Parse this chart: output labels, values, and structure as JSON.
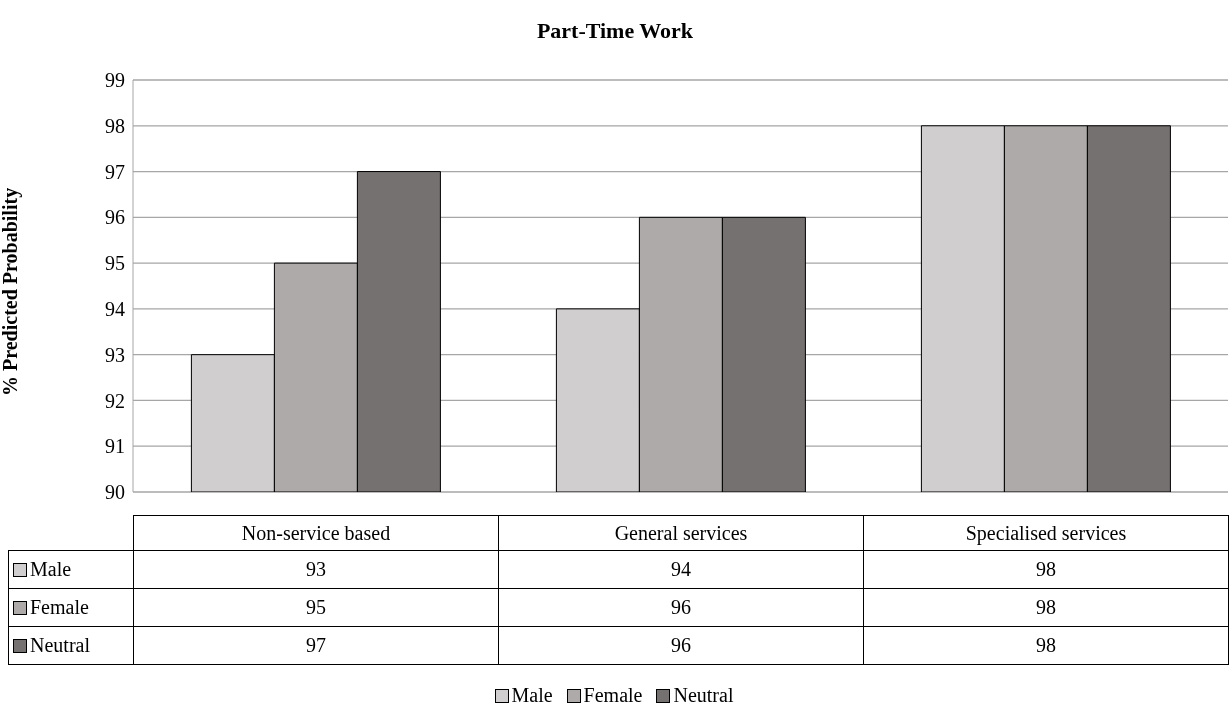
{
  "chart_data": {
    "type": "bar",
    "title": "Part-Time Work",
    "ylabel": "% Predicted Probability",
    "categories": [
      "Non-service based",
      "General services",
      "Specialised services"
    ],
    "series": [
      {
        "name": "Male",
        "color": "#d0cece",
        "values": [
          93,
          94,
          98
        ]
      },
      {
        "name": "Female",
        "color": "#aeaaaa",
        "values": [
          95,
          96,
          98
        ]
      },
      {
        "name": "Neutral",
        "color": "#767171",
        "values": [
          97,
          96,
          98
        ]
      }
    ],
    "ylim": [
      90,
      99
    ],
    "yticks": [
      90,
      91,
      92,
      93,
      94,
      95,
      96,
      97,
      98,
      99
    ],
    "grid": "y",
    "legend": "bottom",
    "data_labels": true
  }
}
